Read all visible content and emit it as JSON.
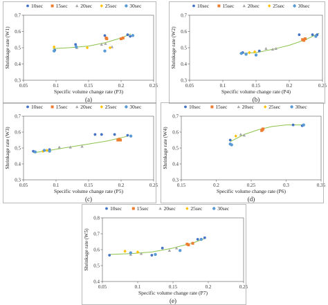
{
  "colors": {
    "s10": "#4472C4",
    "s15": "#ED7D31",
    "s20": "#A5A5A5",
    "s25": "#FFC000",
    "s30": "#5B9BD5",
    "fit": "#8BC34A",
    "axis": "#222222"
  },
  "legend": [
    "10sec",
    "15sec",
    "20sec",
    "25sec",
    "30sec"
  ],
  "chart_data": [
    {
      "id": "a",
      "type": "scatter",
      "caption": "(a)",
      "xlabel": "Specific volume change rate (P3)",
      "ylabel": "Shrinkage rate (W1)",
      "xlim": [
        0.05,
        0.25
      ],
      "ylim": [
        0.3,
        0.7
      ],
      "xticks": [
        "0.05",
        "0.1",
        "0.15",
        "0.2",
        "0.25"
      ],
      "yticks": [
        "0.3",
        "0.4",
        "0.5",
        "0.6",
        "0.7"
      ],
      "series": [
        {
          "name": "10sec",
          "x": [
            0.098,
            0.13,
            0.175,
            0.21,
            0.214
          ],
          "y": [
            0.485,
            0.52,
            0.575,
            0.58,
            0.57
          ]
        },
        {
          "name": "15sec",
          "x": [
            0.177,
            0.178,
            0.2,
            0.203
          ],
          "y": [
            0.56,
            0.555,
            0.555,
            0.56
          ]
        },
        {
          "name": "20sec",
          "x": [
            0.132,
            0.17,
            0.176,
            0.186
          ],
          "y": [
            0.5,
            0.52,
            0.525,
            0.505
          ]
        },
        {
          "name": "25sec",
          "x": [
            0.097,
            0.148,
            0.183
          ],
          "y": [
            0.505,
            0.5,
            0.5
          ]
        },
        {
          "name": "30sec",
          "x": [
            0.097,
            0.131,
            0.175,
            0.218
          ],
          "y": [
            0.48,
            0.505,
            0.48,
            0.575
          ]
        }
      ],
      "fit": {
        "x": [
          0.095,
          0.12,
          0.15,
          0.175,
          0.2,
          0.215
        ],
        "y": [
          0.495,
          0.5,
          0.51,
          0.53,
          0.56,
          0.585
        ]
      }
    },
    {
      "id": "b",
      "type": "scatter",
      "caption": "(b)",
      "xlabel": "Specific volume change rate (P4)",
      "ylabel": "Shrinkage rate (W2)",
      "xlim": [
        0.05,
        0.25
      ],
      "ylim": [
        0.3,
        0.7
      ],
      "xticks": [
        "0.05",
        "0.1",
        "0.15",
        "0.2",
        "0.25"
      ],
      "yticks": [
        "0.3",
        "0.4",
        "0.5",
        "0.6",
        "0.7"
      ],
      "series": [
        {
          "name": "10sec",
          "x": [
            0.13,
            0.155,
            0.215,
            0.235,
            0.242
          ],
          "y": [
            0.47,
            0.48,
            0.58,
            0.58,
            0.58
          ]
        },
        {
          "name": "15sec",
          "x": [
            0.22,
            0.222,
            0.224
          ],
          "y": [
            0.55,
            0.545,
            0.555
          ]
        },
        {
          "name": "20sec",
          "x": [
            0.165,
            0.175,
            0.18
          ],
          "y": [
            0.495,
            0.49,
            0.495
          ]
        },
        {
          "name": "25sec",
          "x": [
            0.14,
            0.148
          ],
          "y": [
            0.47,
            0.475
          ]
        },
        {
          "name": "30sec",
          "x": [
            0.128,
            0.135,
            0.15,
            0.24
          ],
          "y": [
            0.465,
            0.46,
            0.455,
            0.57
          ]
        }
      ],
      "fit": {
        "x": [
          0.125,
          0.15,
          0.175,
          0.2,
          0.225,
          0.245
        ],
        "y": [
          0.465,
          0.47,
          0.49,
          0.515,
          0.55,
          0.59
        ]
      }
    },
    {
      "id": "c",
      "type": "scatter",
      "caption": "(c)",
      "xlabel": "Specific volume change rate (P5)",
      "ylabel": "Shrinkage rate (W3)",
      "xlim": [
        0.05,
        0.25
      ],
      "ylim": [
        0.3,
        0.7
      ],
      "xticks": [
        "0.05",
        "0.1",
        "0.15",
        "0.2",
        "0.25"
      ],
      "yticks": [
        "0.3",
        "0.4",
        "0.5",
        "0.6",
        "0.7"
      ],
      "series": [
        {
          "name": "10sec",
          "x": [
            0.065,
            0.09,
            0.16,
            0.17,
            0.19,
            0.21
          ],
          "y": [
            0.48,
            0.49,
            0.585,
            0.585,
            0.585,
            0.58
          ]
        },
        {
          "name": "15sec",
          "x": [
            0.195,
            0.197,
            0.199
          ],
          "y": [
            0.55,
            0.555,
            0.55
          ]
        },
        {
          "name": "20sec",
          "x": [
            0.105,
            0.122,
            0.14
          ],
          "y": [
            0.505,
            0.505,
            0.51
          ]
        },
        {
          "name": "25sec",
          "x": [
            0.08,
            0.086
          ],
          "y": [
            0.48,
            0.485
          ]
        },
        {
          "name": "30sec",
          "x": [
            0.068,
            0.082,
            0.09,
            0.215
          ],
          "y": [
            0.475,
            0.485,
            0.48,
            0.575
          ]
        }
      ],
      "fit": {
        "x": [
          0.065,
          0.09,
          0.12,
          0.15,
          0.18,
          0.21
        ],
        "y": [
          0.47,
          0.485,
          0.505,
          0.525,
          0.545,
          0.575
        ]
      }
    },
    {
      "id": "d",
      "type": "scatter",
      "caption": "(d)",
      "xlabel": "Specific volume change rate (P6)",
      "ylabel": "Shrinkage rate (W4)",
      "xlim": [
        0.15,
        0.35
      ],
      "ylim": [
        0.3,
        0.7
      ],
      "xticks": [
        "0.15",
        "0.2",
        "0.25",
        "0.3",
        "0.35"
      ],
      "yticks": [
        "0.3",
        "0.4",
        "0.5",
        "0.6",
        "0.7"
      ],
      "series": [
        {
          "name": "10sec",
          "x": [
            0.22,
            0.31,
            0.323
          ],
          "y": [
            0.55,
            0.645,
            0.64
          ]
        },
        {
          "name": "15sec",
          "x": [
            0.265,
            0.266,
            0.267
          ],
          "y": [
            0.61,
            0.615,
            0.62
          ]
        },
        {
          "name": "20sec",
          "x": [
            0.235,
            0.24
          ],
          "y": [
            0.585,
            0.58
          ]
        },
        {
          "name": "25sec",
          "x": [
            0.228
          ],
          "y": [
            0.575
          ]
        },
        {
          "name": "30sec",
          "x": [
            0.22,
            0.222,
            0.325
          ],
          "y": [
            0.525,
            0.52,
            0.645
          ]
        }
      ],
      "fit": {
        "x": [
          0.22,
          0.24,
          0.26,
          0.28,
          0.3,
          0.325
        ],
        "y": [
          0.54,
          0.585,
          0.615,
          0.635,
          0.645,
          0.645
        ]
      }
    },
    {
      "id": "e",
      "type": "scatter",
      "caption": "(e)",
      "xlabel": "Specific volume change rate (P7)",
      "ylabel": "Shrinkage rate (W5)",
      "xlim": [
        0.05,
        0.25
      ],
      "ylim": [
        0.4,
        0.8
      ],
      "xticks": [
        "0.05",
        "0.1",
        "0.15",
        "0.2",
        "0.25"
      ],
      "yticks": [
        "0.4",
        "0.5",
        "0.6",
        "0.7",
        "0.8"
      ],
      "series": [
        {
          "name": "10sec",
          "x": [
            0.06,
            0.12,
            0.135,
            0.185,
            0.195
          ],
          "y": [
            0.565,
            0.565,
            0.61,
            0.665,
            0.675
          ]
        },
        {
          "name": "15sec",
          "x": [
            0.17,
            0.172,
            0.178
          ],
          "y": [
            0.635,
            0.63,
            0.64
          ]
        },
        {
          "name": "20sec",
          "x": [
            0.09,
            0.105,
            0.145,
            0.155
          ],
          "y": [
            0.57,
            0.575,
            0.595,
            0.61
          ]
        },
        {
          "name": "25sec",
          "x": [
            0.082,
            0.1
          ],
          "y": [
            0.59,
            0.585
          ]
        },
        {
          "name": "30sec",
          "x": [
            0.09,
            0.125,
            0.16,
            0.19
          ],
          "y": [
            0.58,
            0.57,
            0.595,
            0.665
          ]
        }
      ],
      "fit": {
        "x": [
          0.06,
          0.09,
          0.12,
          0.15,
          0.18,
          0.195
        ],
        "y": [
          0.57,
          0.575,
          0.585,
          0.61,
          0.645,
          0.67
        ]
      }
    }
  ]
}
